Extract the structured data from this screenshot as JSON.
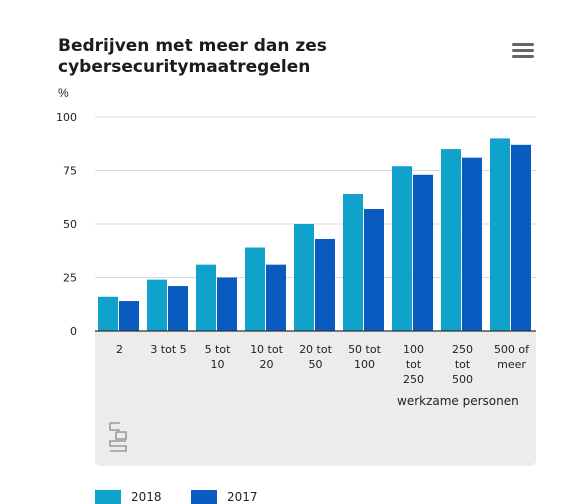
{
  "title": "Bedrijven met meer dan zes cybersecuritymaatregelen",
  "menu_icon": "hamburger-menu-icon",
  "logo_icon": "cbs-logo-icon",
  "colors": {
    "series_2018": "#0fa3cc",
    "series_2017": "#0a5bbf",
    "panel": "#ececec",
    "grid": "#d9d9d9"
  },
  "chart_data": {
    "type": "bar",
    "title": "Bedrijven met meer dan zes cybersecuritymaatregelen",
    "ylabel": "%",
    "xlabel": "werkzame personen",
    "ylim": [
      0,
      100
    ],
    "yticks": [
      0,
      25,
      50,
      75,
      100
    ],
    "grid": true,
    "legend_position": "bottom-left",
    "categories": [
      "2",
      "3 tot 5",
      "5 tot 10",
      "10 tot 20",
      "20 tot 50",
      "50 tot 100",
      "100 tot 250",
      "250 tot 500",
      "500 of meer"
    ],
    "category_lines": [
      [
        "2"
      ],
      [
        "3 tot 5"
      ],
      [
        "5 tot",
        "10"
      ],
      [
        "10 tot",
        "20"
      ],
      [
        "20 tot",
        "50"
      ],
      [
        "50 tot",
        "100"
      ],
      [
        "100",
        "tot",
        "250"
      ],
      [
        "250",
        "tot",
        "500"
      ],
      [
        "500 of",
        "meer"
      ]
    ],
    "series": [
      {
        "name": "2018",
        "values": [
          16,
          24,
          31,
          39,
          50,
          64,
          77,
          85,
          90
        ]
      },
      {
        "name": "2017",
        "values": [
          14,
          21,
          25,
          31,
          43,
          57,
          73,
          81,
          87
        ]
      }
    ]
  }
}
